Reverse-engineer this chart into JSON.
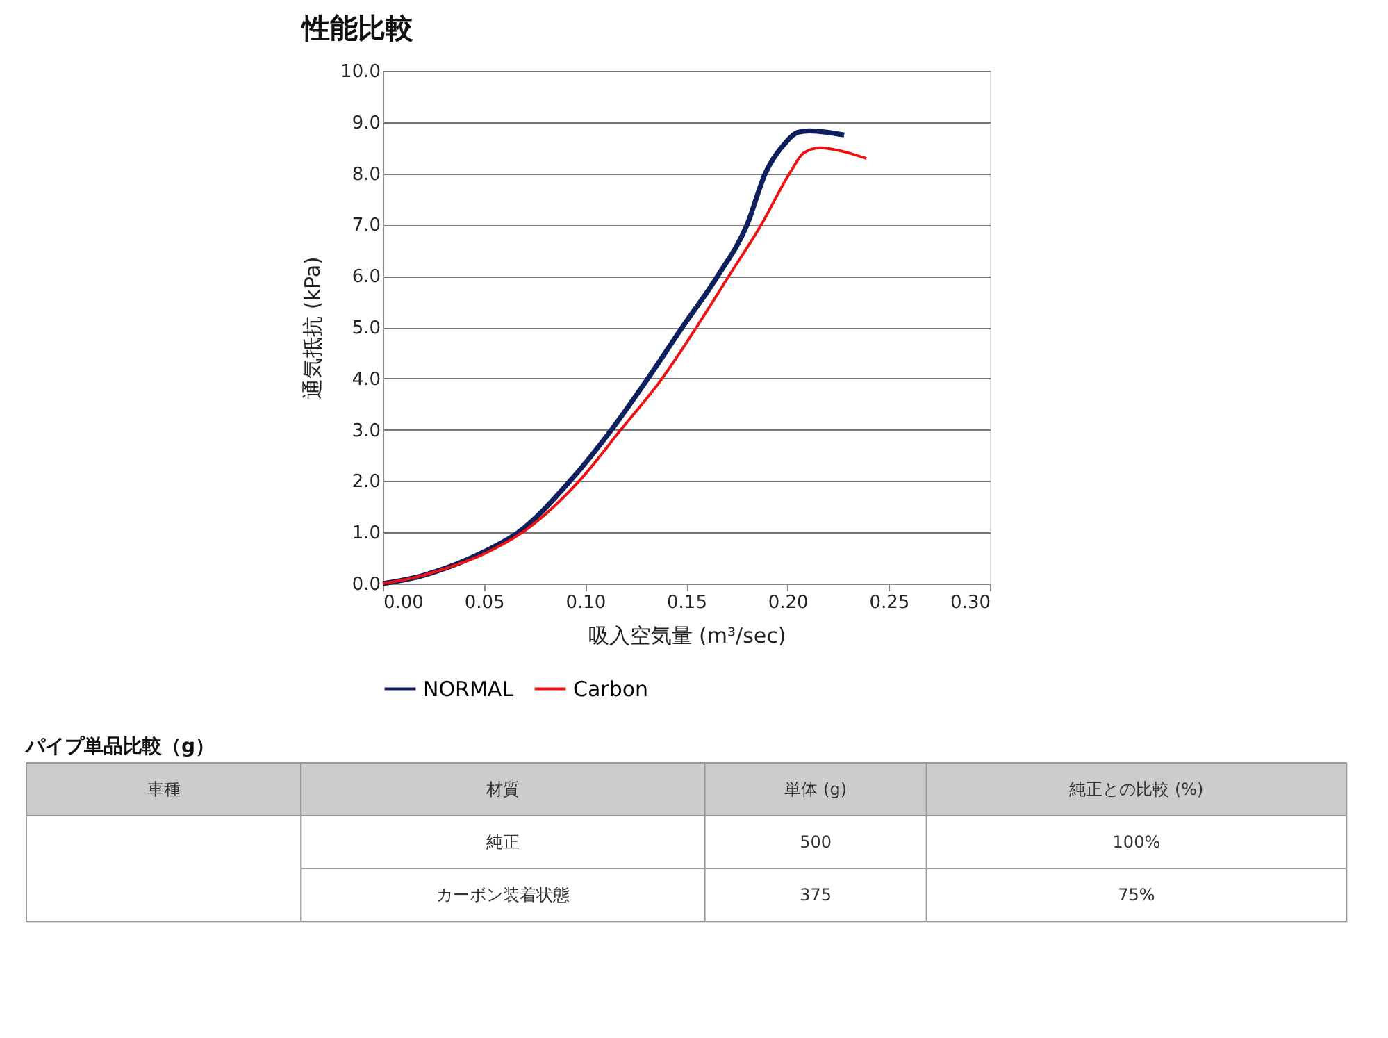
{
  "chart_data": [
    {
      "type": "line",
      "title": "性能比較",
      "xlabel": "吸入空気量 (m³/sec)",
      "ylabel": "通気抵抗 (kPa)",
      "xlim": [
        0,
        0.3
      ],
      "xticks": [
        {
          "value": 0,
          "label": "0.00"
        },
        {
          "value": 0.05,
          "label": "0.05"
        },
        {
          "value": 0.1,
          "label": "0.10"
        },
        {
          "value": 0.15,
          "label": "0.15"
        },
        {
          "value": 0.2,
          "label": "0.20"
        },
        {
          "value": 0.25,
          "label": "0.25"
        },
        {
          "value": 0.3,
          "label": "0.30"
        }
      ],
      "ylim": [
        0,
        10
      ],
      "yticks": [
        {
          "value": 0,
          "label": "0.0"
        },
        {
          "value": 1,
          "label": "1.0"
        },
        {
          "value": 2,
          "label": "2.0"
        },
        {
          "value": 3,
          "label": "3.0"
        },
        {
          "value": 4,
          "label": "4.0"
        },
        {
          "value": 5,
          "label": "5.0"
        },
        {
          "value": 6,
          "label": "6.0"
        },
        {
          "value": 7,
          "label": "7.0"
        },
        {
          "value": 8,
          "label": "8.0"
        },
        {
          "value": 9,
          "label": "9.0"
        },
        {
          "value": 10,
          "label": "10.0"
        }
      ],
      "grid": "y",
      "legend": "bottom",
      "line_style": "solid",
      "marker": "none",
      "series": [
        {
          "name": "NORMAL",
          "color": "#0d1f5c",
          "x": [
            0,
            0.02,
            0.025,
            0.05,
            0.067,
            0.0925,
            0.113,
            0.131,
            0.148,
            0.1655,
            0.18,
            0.189,
            0.199,
            0.205,
            0.211,
            0.22,
            0.228
          ],
          "values": [
            0,
            0.16,
            0.22,
            0.62,
            1.0,
            2.0,
            3.0,
            4.0,
            5.0,
            6.0,
            7.0,
            8.0,
            8.6,
            8.8,
            8.83,
            8.8,
            8.75
          ]
        },
        {
          "name": "Carbon",
          "color": "#ee1111",
          "x": [
            0,
            0.02,
            0.025,
            0.05,
            0.069,
            0.097,
            0.1176,
            0.138,
            0.155,
            0.171,
            0.187,
            0.201,
            0.208,
            0.216,
            0.225,
            0.239
          ],
          "values": [
            0,
            0.16,
            0.22,
            0.58,
            1.0,
            2.0,
            3.0,
            4.0,
            5.0,
            6.0,
            7.0,
            8.0,
            8.4,
            8.5,
            8.45,
            8.29
          ]
        }
      ]
    },
    {
      "type": "other",
      "title": "パイプ単品比較（g）",
      "annotations": [
        "車種",
        "材質",
        "単体 (g)",
        "純正との比較 (%)",
        "純正",
        "500",
        "100%",
        "カーボン装着状態",
        "375",
        "75%"
      ]
    }
  ]
}
